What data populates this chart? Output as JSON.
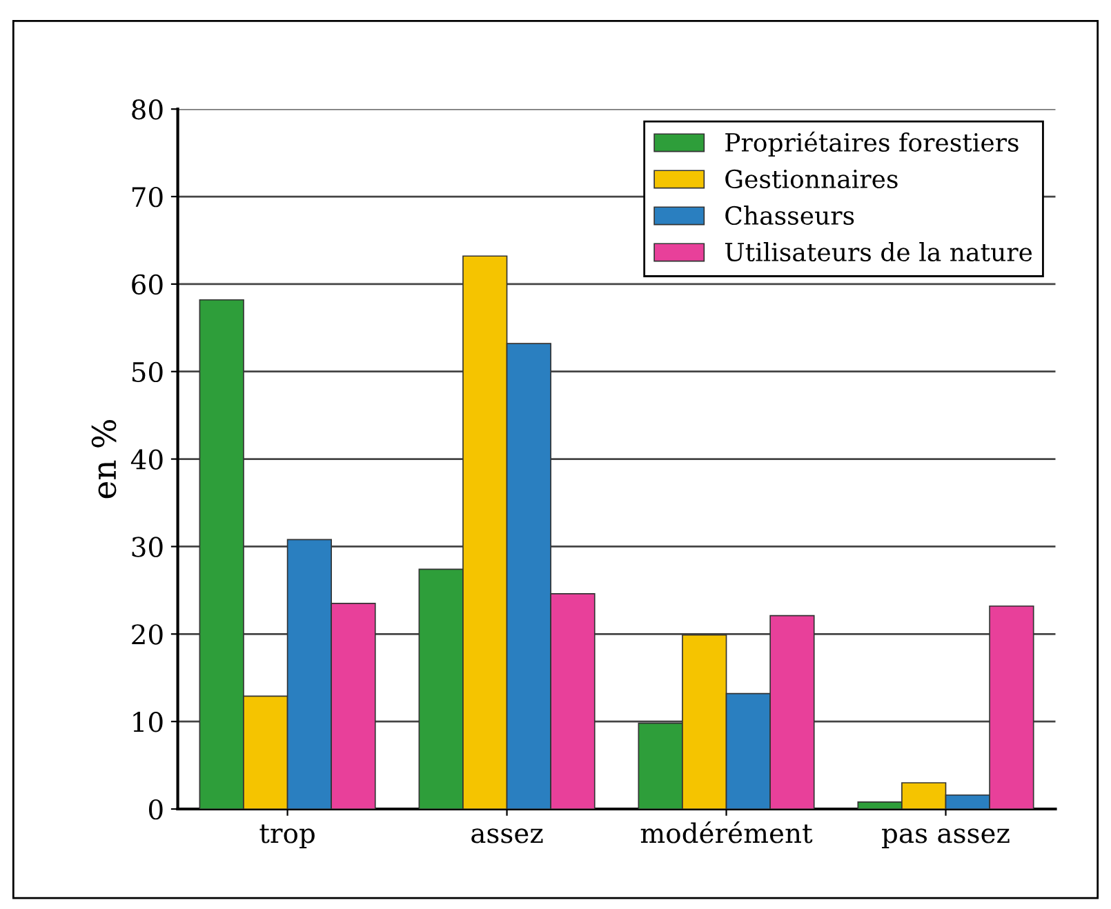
{
  "chart_data": {
    "type": "bar",
    "ylabel": "en %",
    "categories": [
      "trop",
      "assez",
      "modérément",
      "pas assez"
    ],
    "series": [
      {
        "name": "Propriétaires forestiers",
        "color": "#2e9e3a",
        "values": [
          58.2,
          27.4,
          9.8,
          0.8
        ]
      },
      {
        "name": "Gestionnaires",
        "color": "#f5c400",
        "values": [
          12.9,
          63.2,
          19.9,
          3.0
        ]
      },
      {
        "name": "Chasseurs",
        "color": "#2a7fc0",
        "values": [
          30.8,
          53.2,
          13.2,
          1.6
        ]
      },
      {
        "name": "Utilisateurs de la nature",
        "color": "#e8409a",
        "values": [
          23.5,
          24.6,
          22.1,
          23.2
        ]
      }
    ],
    "ylim": [
      0,
      80
    ],
    "yticks": [
      0,
      10,
      20,
      30,
      40,
      50,
      60,
      70,
      80
    ],
    "grid": "y",
    "legend": "top right"
  }
}
